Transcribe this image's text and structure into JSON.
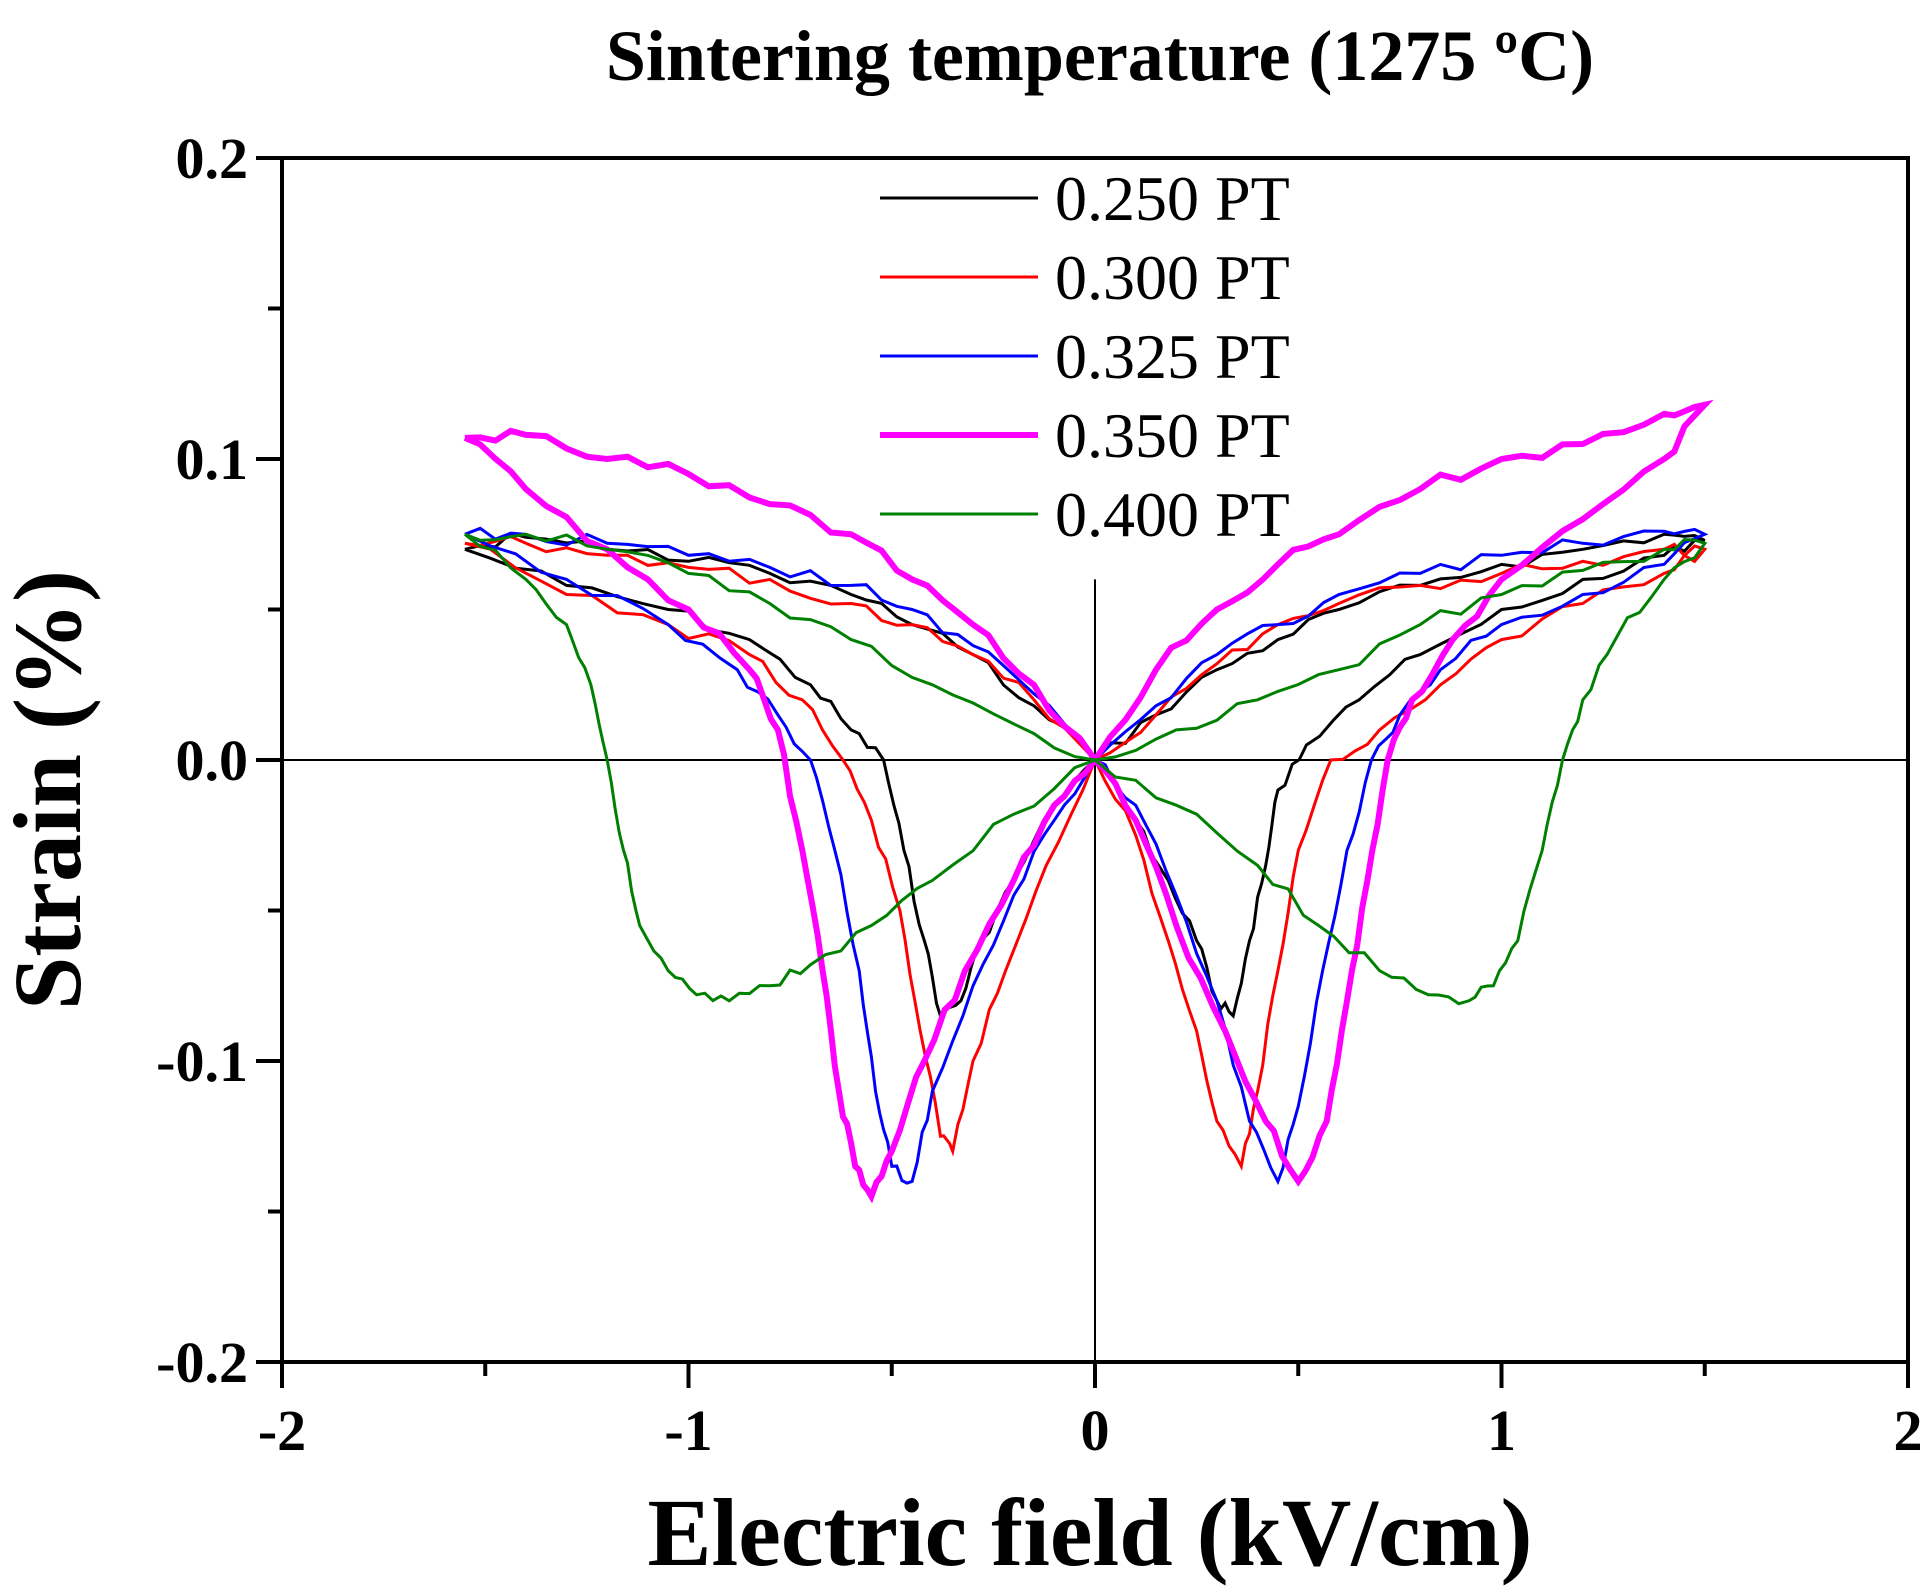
{
  "chart_data": {
    "type": "line",
    "title": "Sintering temperature (1275 ºC)",
    "xlabel": "Electric field (kV/cm)",
    "ylabel": "Strain (%)",
    "xlim": [
      -2,
      2
    ],
    "ylim": [
      -0.2,
      0.2
    ],
    "x_ticks": [
      -2,
      -1,
      0,
      1,
      2
    ],
    "x_tick_labels": [
      "-2",
      "-1",
      "0",
      "1",
      "2"
    ],
    "y_ticks": [
      -0.2,
      -0.1,
      0.0,
      0.1,
      0.2
    ],
    "y_tick_labels": [
      "-0.2",
      "-0.1",
      "0.0",
      "0.1",
      "0.2"
    ],
    "legend_position": "top-center",
    "series": [
      {
        "name": "0.250 PT",
        "color": "#000000",
        "x": [
          -1.55,
          -1.3,
          -1.05,
          -0.85,
          -0.7,
          -0.6,
          -0.52,
          -0.47,
          -0.42,
          -0.38,
          -0.33,
          -0.28,
          -0.2,
          -0.1,
          0.0,
          0.15,
          0.3,
          0.45,
          0.6,
          0.8,
          1.0,
          1.2,
          1.4,
          1.5,
          1.4,
          1.2,
          1.0,
          0.8,
          0.65,
          0.52,
          0.45,
          0.42,
          0.38,
          0.34,
          0.3,
          0.25,
          0.18,
          0.1,
          0.0,
          -0.15,
          -0.3,
          -0.45,
          -0.6,
          -0.8,
          -1.0,
          -1.2,
          -1.4,
          -1.55
        ],
        "y": [
          0.07,
          0.058,
          0.05,
          0.04,
          0.025,
          0.01,
          0.0,
          -0.03,
          -0.06,
          -0.085,
          -0.08,
          -0.06,
          -0.04,
          -0.015,
          0.0,
          0.015,
          0.03,
          0.04,
          0.05,
          0.058,
          0.065,
          0.07,
          0.075,
          0.073,
          0.068,
          0.06,
          0.05,
          0.035,
          0.02,
          0.005,
          -0.01,
          -0.035,
          -0.06,
          -0.085,
          -0.08,
          -0.06,
          -0.04,
          -0.02,
          0.0,
          0.018,
          0.035,
          0.045,
          0.055,
          0.062,
          0.066,
          0.07,
          0.074,
          0.07
        ]
      },
      {
        "name": "0.300 PT",
        "color": "#ff0000",
        "x": [
          -1.55,
          -1.3,
          -1.05,
          -0.85,
          -0.72,
          -0.62,
          -0.55,
          -0.48,
          -0.43,
          -0.38,
          -0.35,
          -0.3,
          -0.22,
          -0.12,
          0.0,
          0.15,
          0.3,
          0.45,
          0.6,
          0.8,
          1.0,
          1.2,
          1.4,
          1.5,
          1.4,
          1.2,
          1.0,
          0.85,
          0.7,
          0.58,
          0.5,
          0.45,
          0.4,
          0.36,
          0.3,
          0.25,
          0.18,
          0.1,
          0.0,
          -0.15,
          -0.3,
          -0.45,
          -0.6,
          -0.8,
          -1.0,
          -1.2,
          -1.4,
          -1.55
        ],
        "y": [
          0.072,
          0.055,
          0.045,
          0.035,
          0.02,
          0.0,
          -0.02,
          -0.05,
          -0.09,
          -0.125,
          -0.13,
          -0.1,
          -0.07,
          -0.035,
          0.0,
          0.015,
          0.032,
          0.045,
          0.052,
          0.058,
          0.062,
          0.066,
          0.07,
          0.07,
          0.062,
          0.052,
          0.04,
          0.025,
          0.01,
          0.0,
          -0.03,
          -0.07,
          -0.11,
          -0.135,
          -0.12,
          -0.09,
          -0.06,
          -0.025,
          0.0,
          0.02,
          0.035,
          0.045,
          0.052,
          0.06,
          0.064,
          0.068,
          0.072,
          0.072
        ]
      },
      {
        "name": "0.325 PT",
        "color": "#0000ff",
        "x": [
          -1.55,
          -1.3,
          -1.05,
          -0.88,
          -0.78,
          -0.7,
          -0.64,
          -0.58,
          -0.54,
          -0.5,
          -0.45,
          -0.4,
          -0.3,
          -0.2,
          -0.1,
          0.0,
          0.15,
          0.3,
          0.45,
          0.6,
          0.8,
          1.0,
          1.2,
          1.4,
          1.5,
          1.4,
          1.2,
          1.0,
          0.85,
          0.75,
          0.68,
          0.62,
          0.56,
          0.5,
          0.45,
          0.38,
          0.3,
          0.2,
          0.1,
          0.0,
          -0.15,
          -0.3,
          -0.45,
          -0.6,
          -0.8,
          -1.0,
          -1.2,
          -1.4,
          -1.55
        ],
        "y": [
          0.075,
          0.06,
          0.045,
          0.03,
          0.015,
          0.0,
          -0.03,
          -0.07,
          -0.11,
          -0.135,
          -0.14,
          -0.11,
          -0.075,
          -0.045,
          -0.02,
          0.0,
          0.018,
          0.035,
          0.045,
          0.055,
          0.062,
          0.068,
          0.072,
          0.076,
          0.075,
          0.065,
          0.055,
          0.045,
          0.03,
          0.015,
          0.0,
          -0.03,
          -0.07,
          -0.115,
          -0.14,
          -0.12,
          -0.08,
          -0.045,
          -0.015,
          0.0,
          0.022,
          0.038,
          0.05,
          0.058,
          0.064,
          0.068,
          0.072,
          0.075,
          0.075
        ]
      },
      {
        "name": "0.350 PT",
        "color": "#ff00ff",
        "x": [
          -1.55,
          -1.4,
          -1.2,
          -1.0,
          -0.85,
          -0.78,
          -0.72,
          -0.67,
          -0.63,
          -0.59,
          -0.55,
          -0.5,
          -0.42,
          -0.32,
          -0.2,
          -0.1,
          0.0,
          0.15,
          0.3,
          0.45,
          0.6,
          0.8,
          1.0,
          1.2,
          1.4,
          1.5,
          1.4,
          1.2,
          1.0,
          0.88,
          0.78,
          0.72,
          0.67,
          0.62,
          0.57,
          0.5,
          0.42,
          0.32,
          0.2,
          0.1,
          0.0,
          -0.15,
          -0.3,
          -0.45,
          -0.6,
          -0.8,
          -1.0,
          -1.2,
          -1.4,
          -1.55
        ],
        "y": [
          0.107,
          0.09,
          0.07,
          0.05,
          0.03,
          0.01,
          -0.03,
          -0.07,
          -0.11,
          -0.135,
          -0.145,
          -0.13,
          -0.1,
          -0.07,
          -0.04,
          -0.015,
          0.0,
          0.03,
          0.05,
          0.065,
          0.075,
          0.09,
          0.1,
          0.105,
          0.115,
          0.118,
          0.1,
          0.08,
          0.06,
          0.04,
          0.02,
          0.0,
          -0.04,
          -0.08,
          -0.12,
          -0.14,
          -0.12,
          -0.09,
          -0.055,
          -0.02,
          0.0,
          0.025,
          0.045,
          0.06,
          0.075,
          0.085,
          0.095,
          0.1,
          0.108,
          0.107
        ]
      },
      {
        "name": "0.400 PT",
        "color": "#008000",
        "x": [
          -1.55,
          -1.4,
          -1.3,
          -1.24,
          -1.2,
          -1.16,
          -1.12,
          -1.05,
          -0.98,
          -0.9,
          -0.8,
          -0.7,
          -0.55,
          -0.4,
          -0.2,
          0.0,
          0.2,
          0.4,
          0.55,
          0.7,
          0.82,
          0.92,
          0.98,
          1.04,
          1.1,
          1.15,
          1.2,
          1.28,
          1.4,
          1.5,
          1.4,
          1.2,
          1.0,
          0.8,
          0.6,
          0.4,
          0.2,
          0.0,
          -0.2,
          -0.4,
          -0.6,
          -0.8,
          -1.0,
          -1.2,
          -1.4,
          -1.55
        ],
        "y": [
          0.075,
          0.06,
          0.045,
          0.025,
          0.0,
          -0.03,
          -0.055,
          -0.07,
          -0.078,
          -0.08,
          -0.075,
          -0.068,
          -0.055,
          -0.04,
          -0.018,
          0.0,
          -0.015,
          -0.035,
          -0.055,
          -0.07,
          -0.078,
          -0.08,
          -0.075,
          -0.06,
          -0.03,
          0.0,
          0.02,
          0.04,
          0.06,
          0.072,
          0.07,
          0.063,
          0.055,
          0.045,
          0.03,
          0.02,
          0.01,
          0.0,
          0.012,
          0.025,
          0.04,
          0.052,
          0.062,
          0.07,
          0.075,
          0.075
        ]
      }
    ]
  }
}
